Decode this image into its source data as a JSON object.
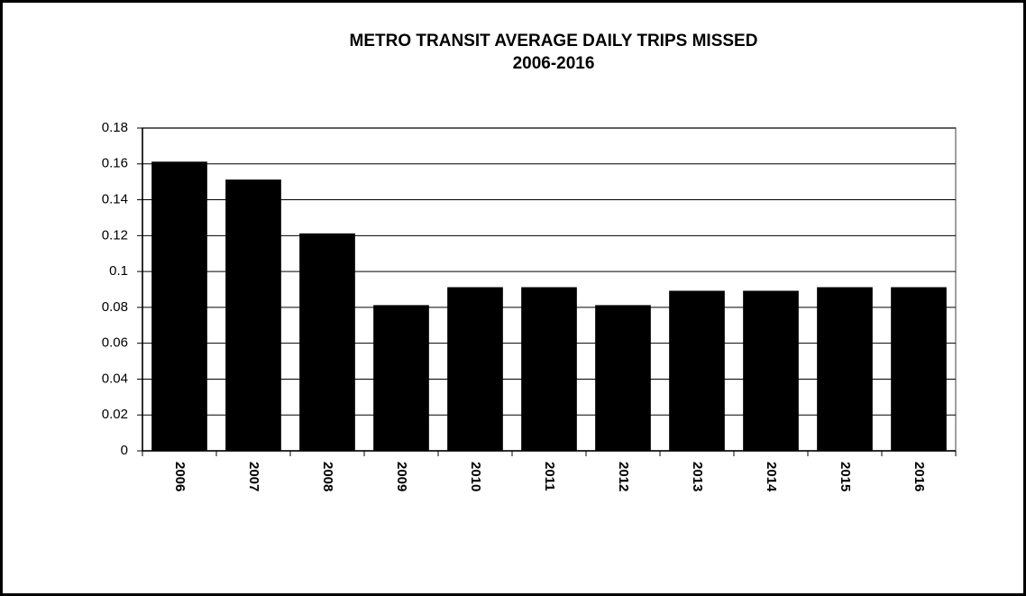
{
  "chart_data": {
    "type": "bar",
    "title": "METRO TRANSIT AVERAGE DAILY TRIPS MISSED",
    "subtitle": "2006-2016",
    "categories": [
      "2006",
      "2007",
      "2008",
      "2009",
      "2010",
      "2011",
      "2012",
      "2013",
      "2014",
      "2015",
      "2016"
    ],
    "values": [
      0.161,
      0.151,
      0.121,
      0.081,
      0.091,
      0.091,
      0.081,
      0.089,
      0.089,
      0.091,
      0.091
    ],
    "color": "#000000",
    "ylim": [
      0,
      0.18
    ],
    "yticks": [
      0,
      0.02,
      0.04,
      0.06,
      0.08,
      0.1,
      0.12,
      0.14,
      0.16,
      0.18
    ],
    "grid": true
  }
}
